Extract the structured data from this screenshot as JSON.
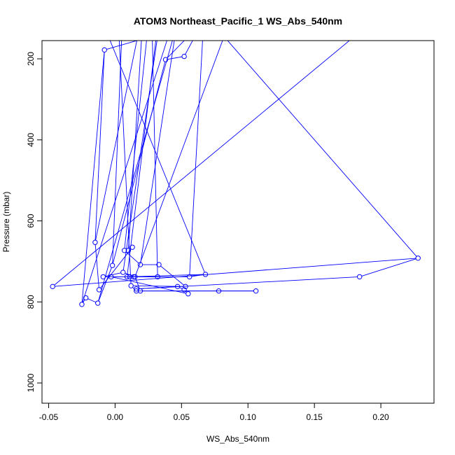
{
  "chart_data": {
    "type": "line",
    "title": "ATOM3 Northeast_Pacific_1 WS_Abs_540nm",
    "xlabel": "WS_Abs_540nm",
    "ylabel": "Pressure (mbar)",
    "xlim": [
      -0.055,
      0.24
    ],
    "ylim": [
      1050,
      155
    ],
    "y_reversed": true,
    "grid": false,
    "legend": "none",
    "x_ticks": [
      {
        "value": -0.05,
        "label": "-0.05"
      },
      {
        "value": 0.0,
        "label": "0.00"
      },
      {
        "value": 0.05,
        "label": "0.05"
      },
      {
        "value": 0.1,
        "label": "0.10"
      },
      {
        "value": 0.15,
        "label": "0.15"
      },
      {
        "value": 0.2,
        "label": "0.20"
      }
    ],
    "y_ticks": [
      {
        "value": 200,
        "label": "200"
      },
      {
        "value": 400,
        "label": "400"
      },
      {
        "value": 600,
        "label": "600"
      },
      {
        "value": 800,
        "label": "800"
      },
      {
        "value": 1000,
        "label": "1000"
      }
    ],
    "line_color": "#0000ff",
    "series": [
      {
        "marker": "open-circle",
        "points": [
          {
            "x": -0.047,
            "y": 762
          },
          {
            "x": 0.228,
            "y": 692
          },
          {
            "x": 0.184,
            "y": 738
          },
          {
            "x": 0.016,
            "y": 768
          },
          {
            "x": 0.047,
            "y": 762
          },
          {
            "x": 0.052,
            "y": 770
          },
          {
            "x": 0.055,
            "y": 780
          },
          {
            "x": -0.003,
            "y": 738
          },
          {
            "x": 0.032,
            "y": 738
          },
          {
            "x": 0.009,
            "y": 738
          },
          {
            "x": 0.014,
            "y": 738
          },
          {
            "x": 0.011,
            "y": 738
          },
          {
            "x": 0.068,
            "y": 732
          },
          {
            "x": 0.056,
            "y": 738
          },
          {
            "x": -0.009,
            "y": 738
          },
          {
            "x": 0.006,
            "y": 727
          },
          {
            "x": 0.015,
            "y": 738
          },
          {
            "x": 0.019,
            "y": 773
          },
          {
            "x": 0.078,
            "y": 773
          },
          {
            "x": 0.106,
            "y": 773
          },
          {
            "x": 0.016,
            "y": 773
          },
          {
            "x": 0.012,
            "y": 760
          },
          {
            "x": 0.053,
            "y": 762
          },
          {
            "x": 0.033,
            "y": 708
          },
          {
            "x": 0.019,
            "y": 708
          },
          {
            "x": 0.007,
            "y": 673
          },
          {
            "x": 0.01,
            "y": 673
          },
          {
            "x": 0.013,
            "y": 665
          },
          {
            "x": -0.012,
            "y": 770
          },
          {
            "x": -0.015,
            "y": 653
          },
          {
            "x": -0.008,
            "y": 178
          },
          {
            "x": -0.025,
            "y": 806
          },
          {
            "x": -0.022,
            "y": 790
          },
          {
            "x": -0.013,
            "y": 803
          },
          {
            "x": -0.002,
            "y": 710
          },
          {
            "x": 0.038,
            "y": 202
          },
          {
            "x": 0.052,
            "y": 194
          }
        ]
      }
    ],
    "offscreen_segments": [
      {
        "from": {
          "x": 0.228,
          "y": 692
        },
        "to": {
          "x": 0.082,
          "y": 145
        }
      },
      {
        "from": {
          "x": -0.047,
          "y": 762
        },
        "to": {
          "x": 0.18,
          "y": 145
        }
      },
      {
        "from": {
          "x": 0.056,
          "y": 738
        },
        "to": {
          "x": 0.066,
          "y": 145
        }
      },
      {
        "from": {
          "x": 0.015,
          "y": 738
        },
        "to": {
          "x": 0.082,
          "y": 145
        }
      },
      {
        "from": {
          "x": 0.032,
          "y": 738
        },
        "to": {
          "x": 0.028,
          "y": 145
        }
      },
      {
        "from": {
          "x": 0.006,
          "y": 727
        },
        "to": {
          "x": 0.032,
          "y": 145
        }
      },
      {
        "from": {
          "x": 0.019,
          "y": 708
        },
        "to": {
          "x": 0.045,
          "y": 145
        }
      },
      {
        "from": {
          "x": 0.007,
          "y": 673
        },
        "to": {
          "x": 0.024,
          "y": 145
        }
      },
      {
        "from": {
          "x": 0.01,
          "y": 673
        },
        "to": {
          "x": 0.02,
          "y": 145
        }
      },
      {
        "from": {
          "x": 0.012,
          "y": 760
        },
        "to": {
          "x": 0.003,
          "y": 145
        }
      },
      {
        "from": {
          "x": 0.009,
          "y": 738
        },
        "to": {
          "x": 0.031,
          "y": 145
        }
      },
      {
        "from": {
          "x": 0.068,
          "y": 732
        },
        "to": {
          "x": -0.005,
          "y": 145
        }
      },
      {
        "from": {
          "x": -0.015,
          "y": 653
        },
        "to": {
          "x": 0.017,
          "y": 145
        }
      },
      {
        "from": {
          "x": -0.008,
          "y": 178
        },
        "to": {
          "x": 0.027,
          "y": 145
        }
      },
      {
        "from": {
          "x": -0.002,
          "y": 710
        },
        "to": {
          "x": 0.005,
          "y": 145
        }
      },
      {
        "from": {
          "x": 0.038,
          "y": 202
        },
        "to": {
          "x": 0.055,
          "y": 145
        }
      },
      {
        "from": {
          "x": 0.052,
          "y": 194
        },
        "to": {
          "x": 0.06,
          "y": 145
        }
      },
      {
        "from": {
          "x": -0.025,
          "y": 806
        },
        "to": {
          "x": 0.04,
          "y": 145
        }
      },
      {
        "from": {
          "x": -0.013,
          "y": 803
        },
        "to": {
          "x": 0.044,
          "y": 145
        }
      }
    ]
  }
}
